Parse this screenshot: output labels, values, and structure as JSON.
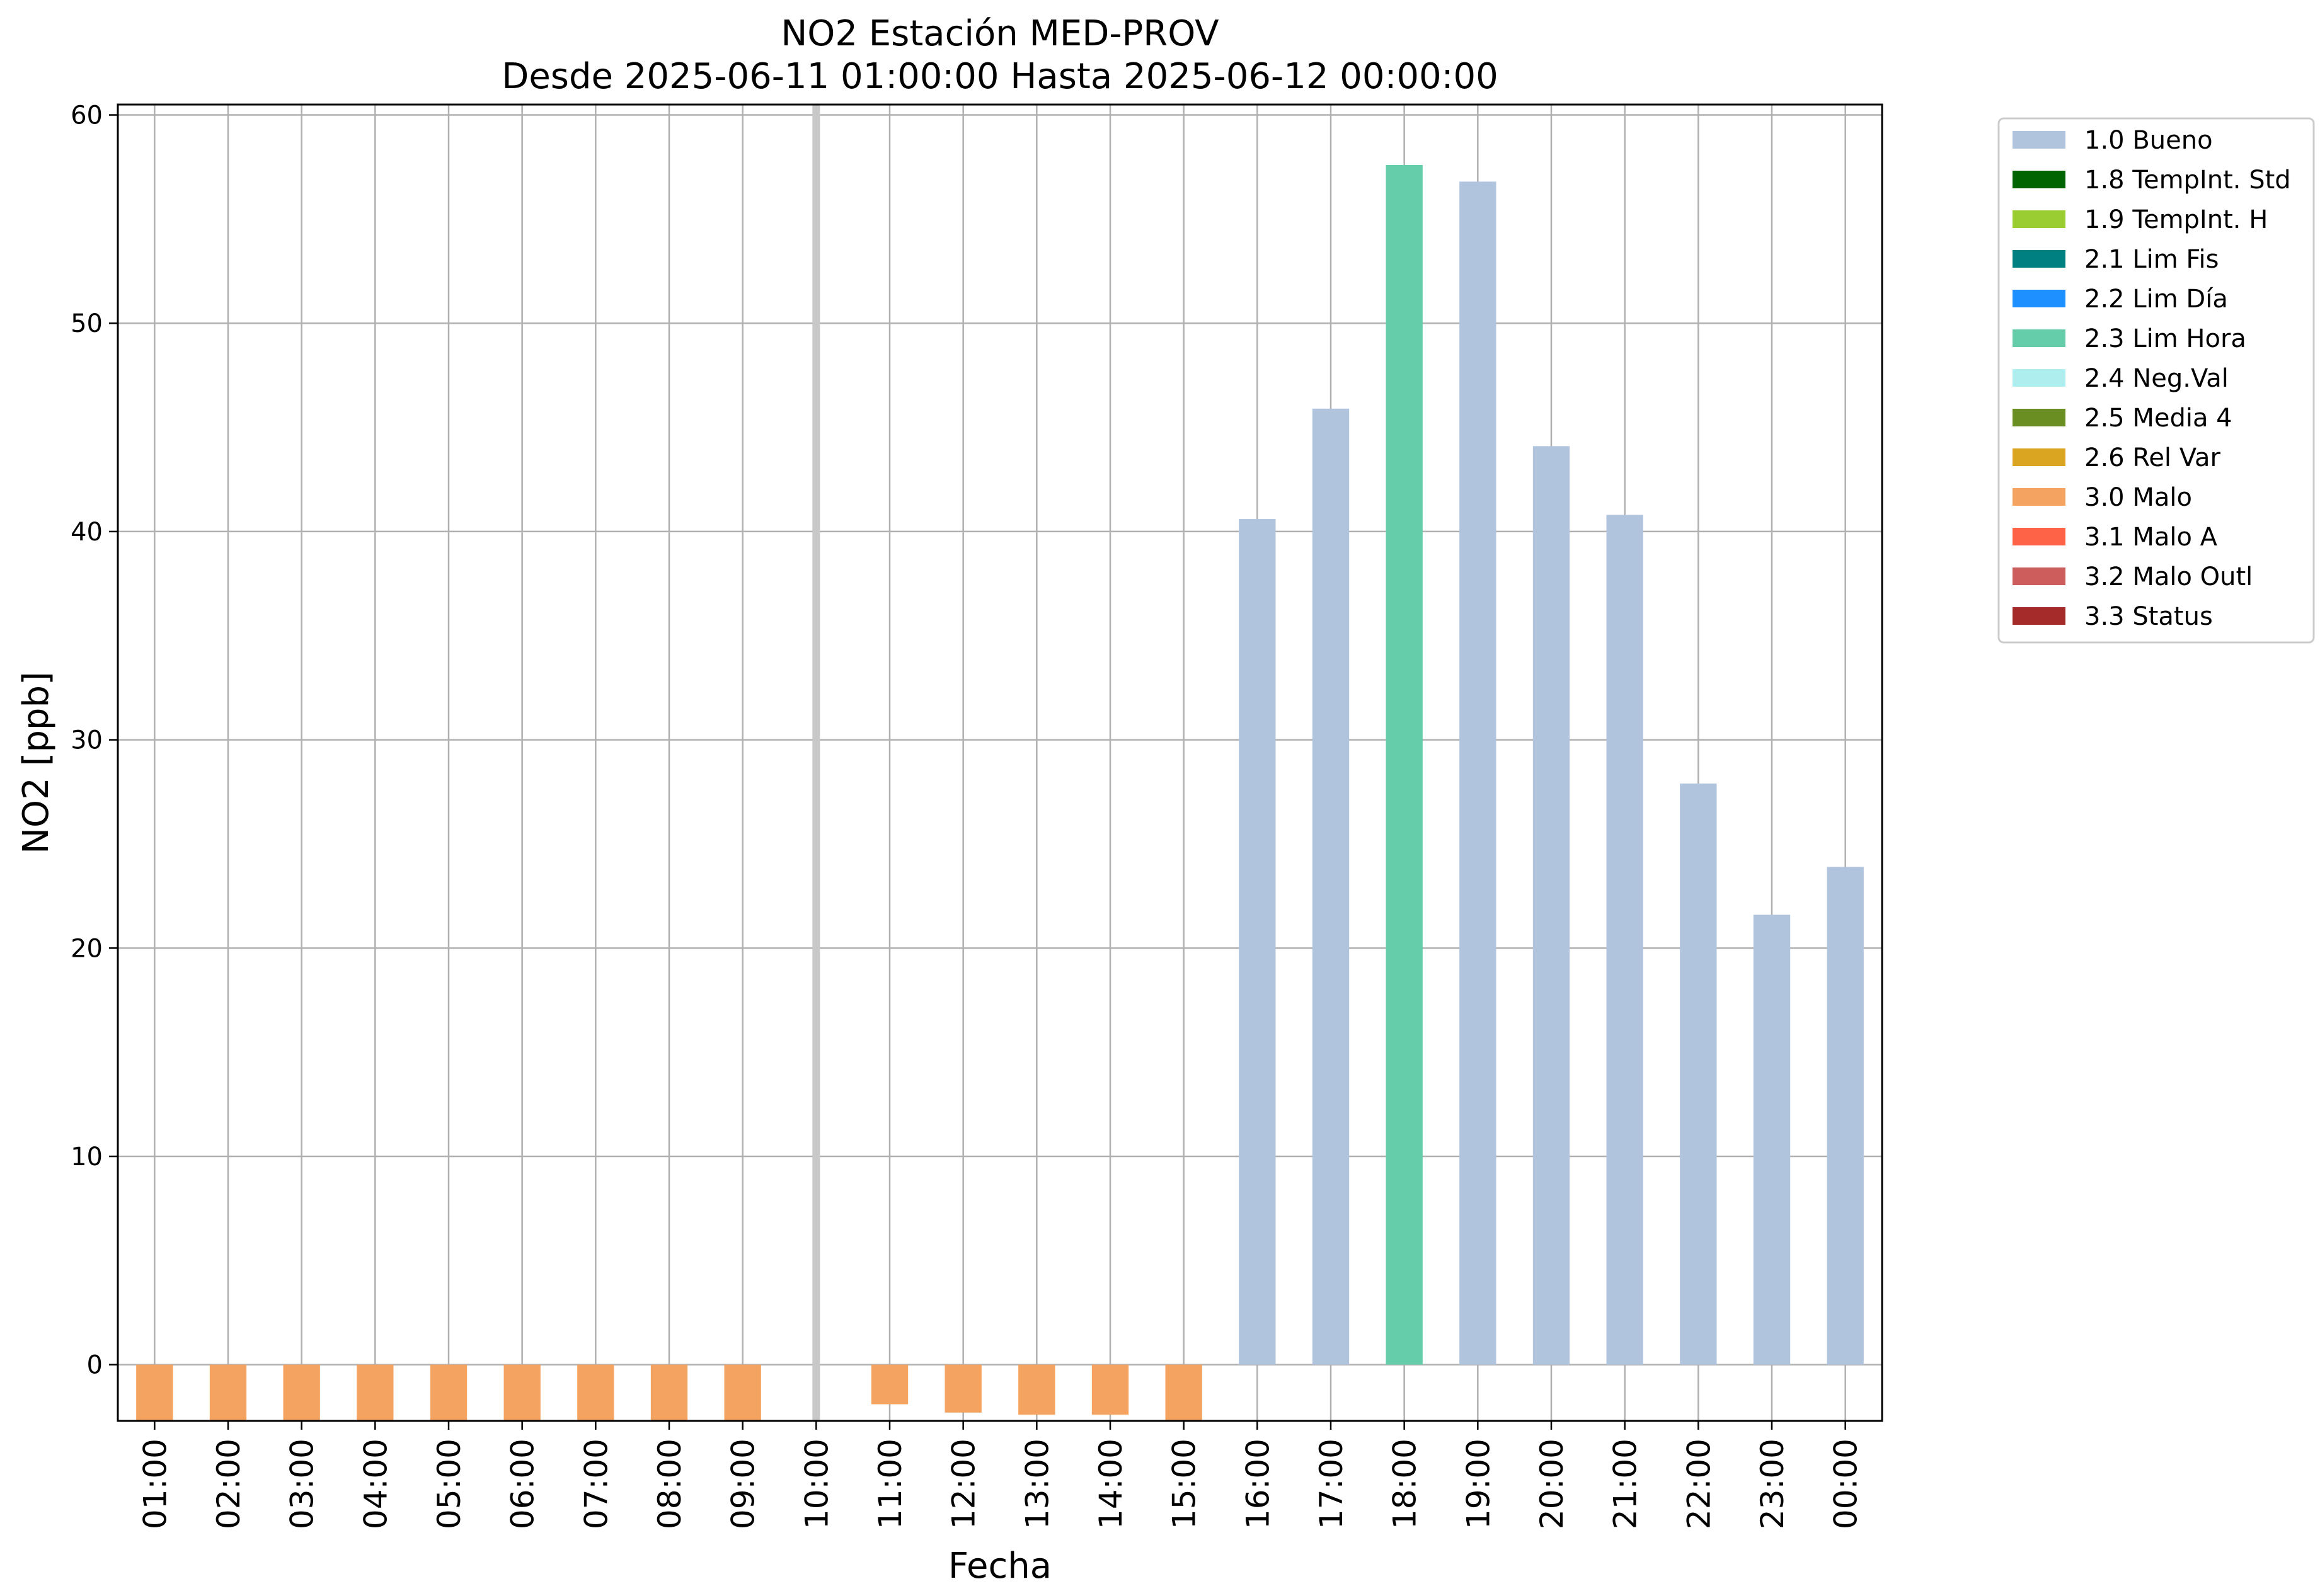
{
  "chart_data": {
    "type": "bar",
    "title": "NO2 Estación MED-PROV",
    "subtitle": "Desde 2025-06-11 01:00:00 Hasta 2025-06-12 00:00:00",
    "xlabel": "Fecha",
    "ylabel": "NO2 [ppb]",
    "ylim": [
      -2.7,
      60.5
    ],
    "yticks": [
      0,
      10,
      20,
      30,
      40,
      50,
      60
    ],
    "grid": true,
    "legend_position": "outside-right",
    "categories": [
      "01:00",
      "02:00",
      "03:00",
      "04:00",
      "05:00",
      "06:00",
      "07:00",
      "08:00",
      "09:00",
      "10:00",
      "11:00",
      "12:00",
      "13:00",
      "14:00",
      "15:00",
      "16:00",
      "17:00",
      "18:00",
      "19:00",
      "20:00",
      "21:00",
      "22:00",
      "23:00",
      "00:00"
    ],
    "values": [
      -2.7,
      -2.7,
      -2.7,
      -2.7,
      -2.7,
      -2.7,
      -2.7,
      -2.7,
      -2.7,
      null,
      -1.9,
      -2.3,
      -2.4,
      -2.4,
      -2.7,
      40.6,
      45.9,
      57.6,
      56.8,
      44.1,
      40.8,
      27.9,
      21.6,
      23.9
    ],
    "flags": [
      "3.0 Malo",
      "3.0 Malo",
      "3.0 Malo",
      "3.0 Malo",
      "3.0 Malo",
      "3.0 Malo",
      "3.0 Malo",
      "3.0 Malo",
      "3.0 Malo",
      null,
      "3.0 Malo",
      "3.0 Malo",
      "3.0 Malo",
      "3.0 Malo",
      "3.0 Malo",
      "1.0 Bueno",
      "1.0 Bueno",
      "2.3 Lim Hora",
      "1.0 Bueno",
      "1.0 Bueno",
      "1.0 Bueno",
      "1.0 Bueno",
      "1.0 Bueno",
      "1.0 Bueno"
    ],
    "marker_category": "10:00",
    "marker_color": "#c8c8c8",
    "legend": [
      {
        "label": "1.0 Bueno",
        "color": "#b0c4de"
      },
      {
        "label": "1.8 TempInt. Std",
        "color": "#006400"
      },
      {
        "label": "1.9 TempInt. H",
        "color": "#9acd32"
      },
      {
        "label": "2.1 Lim Fis",
        "color": "#008080"
      },
      {
        "label": "2.2 Lim Día",
        "color": "#1e90ff"
      },
      {
        "label": "2.3 Lim Hora",
        "color": "#66cdaa"
      },
      {
        "label": "2.4 Neg.Val",
        "color": "#afeeee"
      },
      {
        "label": "2.5 Media 4",
        "color": "#6b8e23"
      },
      {
        "label": "2.6 Rel Var",
        "color": "#daa520"
      },
      {
        "label": "3.0 Malo",
        "color": "#f4a460"
      },
      {
        "label": "3.1 Malo A",
        "color": "#ff6347"
      },
      {
        "label": "3.2 Malo Outl",
        "color": "#cd5c5c"
      },
      {
        "label": "3.3 Status",
        "color": "#a52a2a"
      }
    ]
  }
}
